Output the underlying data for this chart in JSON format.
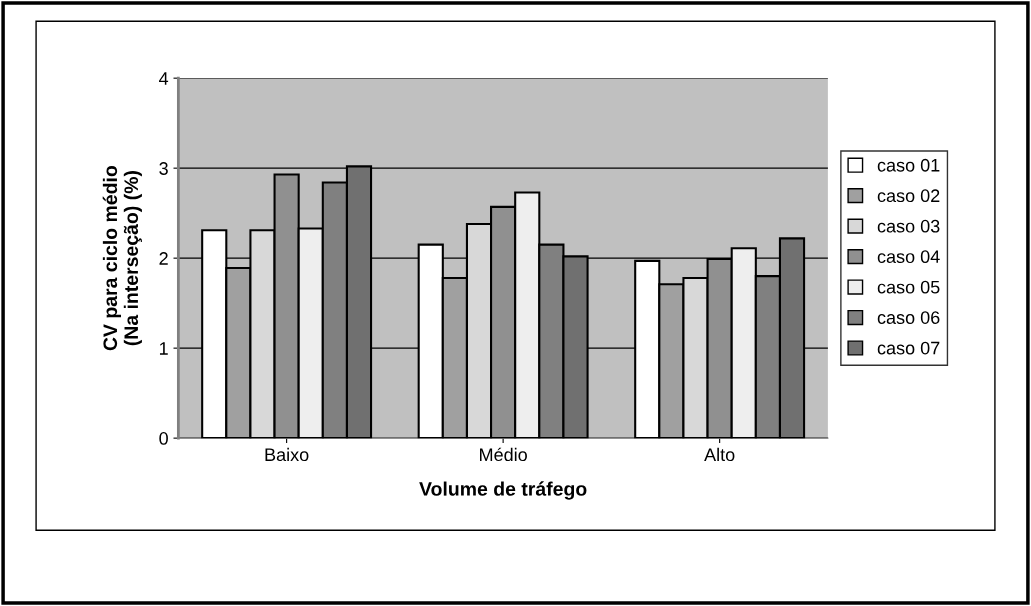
{
  "chart_data": {
    "type": "bar",
    "xlabel": "Volume de tráfego",
    "ylabel": "CV para ciclo médio\n(Na interseção) (%)",
    "categories": [
      "Baixo",
      "Médio",
      "Alto"
    ],
    "series": [
      {
        "name": "caso 01",
        "color": "#ffffff",
        "values": [
          2.31,
          2.15,
          1.97
        ]
      },
      {
        "name": "caso 02",
        "color": "#a0a0a0",
        "values": [
          1.89,
          1.78,
          1.71
        ]
      },
      {
        "name": "caso 03",
        "color": "#d8d8d8",
        "values": [
          2.31,
          2.38,
          1.78
        ]
      },
      {
        "name": "caso 04",
        "color": "#909090",
        "values": [
          2.93,
          2.57,
          1.99
        ]
      },
      {
        "name": "caso 05",
        "color": "#eeeeee",
        "values": [
          2.33,
          2.73,
          2.11
        ]
      },
      {
        "name": "caso 06",
        "color": "#808080",
        "values": [
          2.84,
          2.15,
          1.8
        ]
      },
      {
        "name": "caso 07",
        "color": "#707070",
        "values": [
          3.02,
          2.02,
          2.22
        ]
      }
    ],
    "ylim": [
      0,
      4
    ],
    "yticks": [
      0,
      1,
      2,
      3,
      4
    ],
    "grid": "y",
    "legend": "right"
  }
}
